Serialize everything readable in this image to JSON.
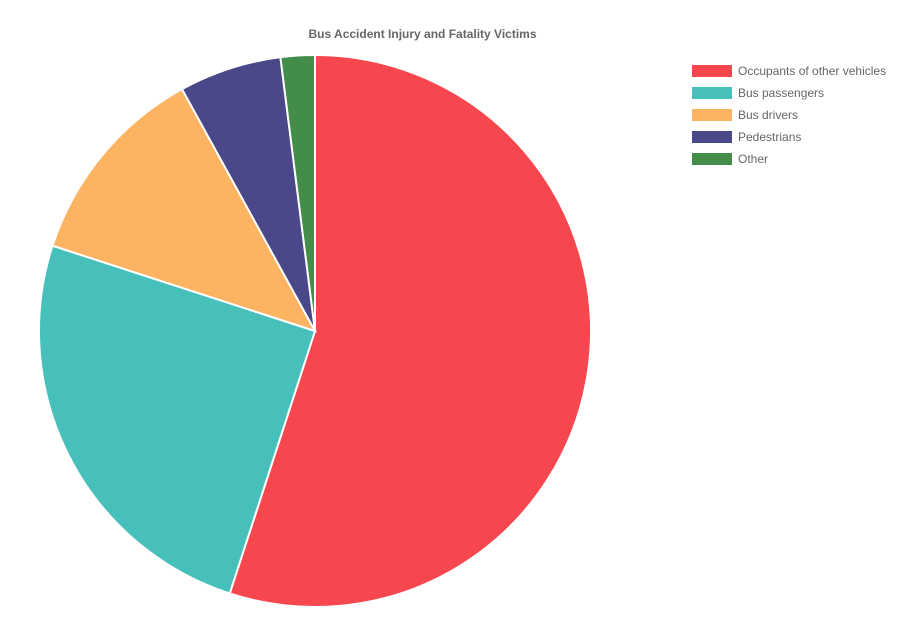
{
  "chart_data": {
    "type": "pie",
    "title": "Bus Accident Injury and Fatality Victims",
    "legend_position": "right",
    "categories": [
      "Occupants of other vehicles",
      "Bus passengers",
      "Bus drivers",
      "Pedestrians",
      "Other"
    ],
    "values": [
      55,
      25,
      12,
      6,
      2
    ],
    "unit": "%",
    "colors": [
      "#f5474d",
      "#47bfba",
      "#fdb462",
      "#4a4888",
      "#438c4a"
    ]
  }
}
